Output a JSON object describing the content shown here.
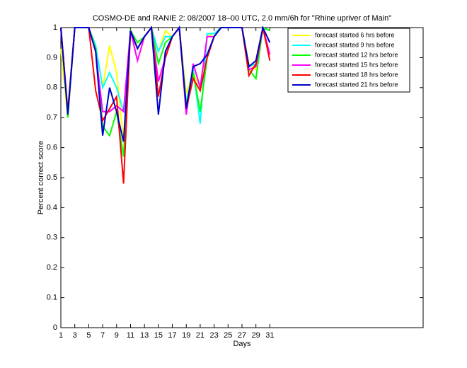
{
  "chart_data": {
    "type": "line",
    "title": "COSMO-DE and RANIE 2: 08/2007 18–00 UTC, 2.0 mm/6h for \"Rhine upriver of Main\"",
    "x_label": "Days",
    "y_label": "Percent correct score",
    "x": [
      1,
      2,
      3,
      4,
      5,
      6,
      7,
      8,
      9,
      10,
      11,
      12,
      13,
      14,
      15,
      16,
      17,
      18,
      19,
      20,
      21,
      22,
      23,
      24,
      25,
      26,
      27,
      28,
      29,
      30,
      31
    ],
    "series": [
      {
        "name": "forecast started 6 hrs before",
        "color": "#ffff00",
        "values": [
          0.93,
          0.7,
          1,
          1,
          1,
          0.94,
          0.8,
          0.94,
          0.85,
          0.62,
          0.99,
          0.93,
          0.97,
          1,
          0.92,
          0.99,
          0.97,
          1,
          0.78,
          0.85,
          0.8,
          0.97,
          0.98,
          1,
          1,
          1,
          1,
          0.88,
          0.86,
          1,
          0.99
        ]
      },
      {
        "name": "forecast started 9 hrs before",
        "color": "#00ffff",
        "values": [
          1,
          0.72,
          1,
          1,
          1,
          0.94,
          0.8,
          0.85,
          0.8,
          0.72,
          0.99,
          0.93,
          0.97,
          1,
          0.92,
          0.97,
          0.97,
          1,
          0.75,
          0.86,
          0.68,
          0.98,
          0.98,
          1,
          1,
          1,
          1,
          0.87,
          0.88,
          1,
          0.99
        ]
      },
      {
        "name": "forecast started 12 hrs before",
        "color": "#00ff00",
        "values": [
          1,
          0.7,
          1,
          1,
          1,
          0.93,
          0.67,
          0.64,
          0.72,
          0.57,
          0.99,
          0.95,
          0.97,
          1,
          0.88,
          0.95,
          0.97,
          1,
          0.74,
          0.85,
          0.72,
          0.9,
          0.97,
          1,
          1,
          1,
          1,
          0.86,
          0.83,
          1,
          0.99
        ]
      },
      {
        "name": "forecast started 15 hrs before",
        "color": "#ff00ff",
        "values": [
          1,
          0.72,
          1,
          1,
          1,
          0.92,
          0.72,
          0.72,
          0.74,
          0.72,
          0.99,
          0.89,
          0.97,
          1,
          0.82,
          0.9,
          0.97,
          1,
          0.71,
          0.88,
          0.8,
          0.97,
          0.97,
          1,
          1,
          1,
          1,
          0.86,
          0.87,
          1,
          0.91
        ]
      },
      {
        "name": "forecast started 18 hrs before",
        "color": "#ff0000",
        "values": [
          1,
          0.72,
          1,
          1,
          1,
          0.79,
          0.69,
          0.73,
          0.77,
          0.48,
          0.99,
          0.93,
          0.97,
          1,
          0.77,
          0.9,
          0.97,
          1,
          0.73,
          0.83,
          0.79,
          0.9,
          0.97,
          1,
          1,
          1,
          1,
          0.84,
          0.88,
          1,
          0.89
        ]
      },
      {
        "name": "forecast started 21 hrs before",
        "color": "#0000cc",
        "values": [
          1,
          0.71,
          1,
          1,
          1,
          0.92,
          0.64,
          0.8,
          0.72,
          0.62,
          0.99,
          0.93,
          0.97,
          1,
          0.71,
          0.92,
          0.97,
          1,
          0.73,
          0.87,
          0.88,
          0.91,
          0.97,
          1,
          1,
          1,
          1,
          0.87,
          0.89,
          1,
          0.95
        ]
      }
    ],
    "xlim": [
      1,
      53
    ],
    "xticks": [
      1,
      3,
      5,
      7,
      9,
      11,
      13,
      15,
      17,
      19,
      21,
      23,
      25,
      27,
      29,
      31
    ],
    "ylim": [
      0,
      1
    ],
    "yticks": [
      0,
      0.1,
      0.2,
      0.3,
      0.4,
      0.5,
      0.6,
      0.7,
      0.8,
      0.9,
      1
    ],
    "legend": "top-right"
  }
}
